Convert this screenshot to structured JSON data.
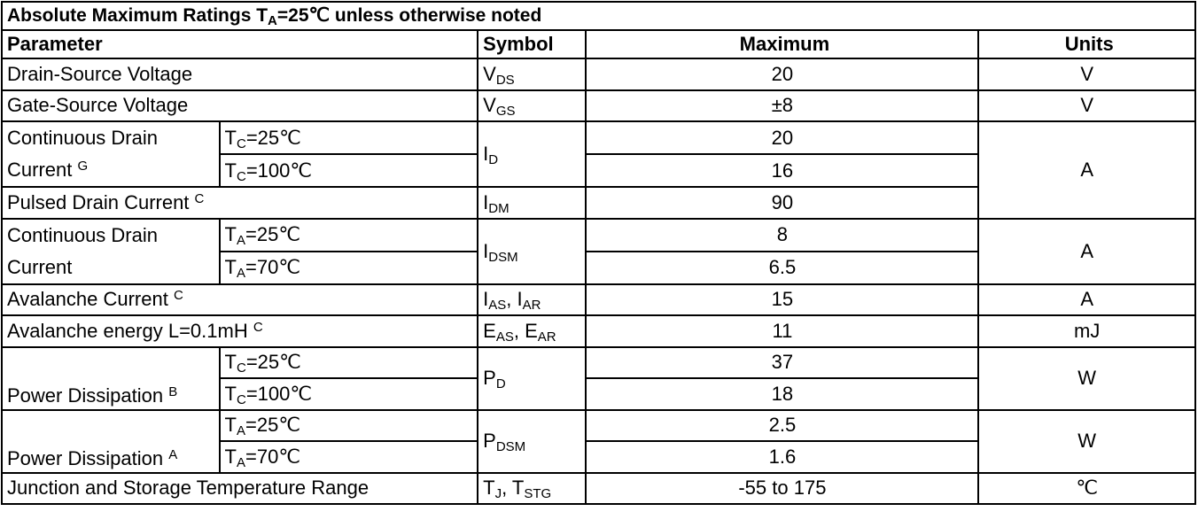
{
  "title": [
    "Absolute Maximum Ratings  T",
    {
      "sub": "A"
    },
    "=25℃ unless otherwise noted"
  ],
  "header": {
    "parameter": "Parameter",
    "symbol": "Symbol",
    "maximum": "Maximum",
    "units": "Units"
  },
  "groups": [
    {
      "units": "V",
      "rows": [
        {
          "parameter": [
            "Drain-Source Voltage"
          ],
          "symbol": [
            "V",
            {
              "sub": "DS"
            }
          ],
          "maximum": [
            20
          ]
        }
      ]
    },
    {
      "units": "V",
      "rows": [
        {
          "parameter": [
            "Gate-Source Voltage"
          ],
          "symbol": [
            "V",
            {
              "sub": "GS"
            }
          ],
          "maximum": [
            "±8"
          ]
        }
      ]
    },
    {
      "units": "A",
      "rows": [
        {
          "parameter": [
            "Continuous Drain Current ",
            {
              "sup": "G"
            }
          ],
          "conditions": [
            [
              "T",
              {
                "sub": "C"
              },
              "=25℃"
            ],
            [
              "T",
              {
                "sub": "C"
              },
              "=100℃"
            ]
          ],
          "symbol": [
            "I",
            {
              "sub": "D"
            }
          ],
          "maximum": [
            20,
            16
          ]
        },
        {
          "parameter": [
            "Pulsed Drain Current ",
            {
              "sup": "C"
            }
          ],
          "symbol": [
            "I",
            {
              "sub": "DM"
            }
          ],
          "maximum": [
            90
          ]
        }
      ]
    },
    {
      "units": "A",
      "rows": [
        {
          "parameter": [
            "Continuous Drain Current"
          ],
          "conditions": [
            [
              "T",
              {
                "sub": "A"
              },
              "=25℃"
            ],
            [
              "T",
              {
                "sub": "A"
              },
              "=70℃"
            ]
          ],
          "symbol": [
            "I",
            {
              "sub": "DSM"
            }
          ],
          "maximum": [
            8,
            6.5
          ]
        }
      ]
    },
    {
      "units": "A",
      "rows": [
        {
          "parameter": [
            "Avalanche Current ",
            {
              "sup": "C"
            }
          ],
          "symbol": [
            "I",
            {
              "sub": "AS"
            },
            ", I",
            {
              "sub": "AR"
            }
          ],
          "maximum": [
            15
          ]
        }
      ]
    },
    {
      "units": "mJ",
      "rows": [
        {
          "parameter": [
            "Avalanche energy L=0.1mH ",
            {
              "sup": "C"
            }
          ],
          "symbol": [
            "E",
            {
              "sub": "AS"
            },
            ", E",
            {
              "sub": "AR"
            }
          ],
          "maximum": [
            11
          ]
        }
      ]
    },
    {
      "units": "W",
      "rows": [
        {
          "parameter": [
            "Power Dissipation ",
            {
              "sup": "B"
            }
          ],
          "conditions": [
            [
              "T",
              {
                "sub": "C"
              },
              "=25℃"
            ],
            [
              "T",
              {
                "sub": "C"
              },
              "=100℃"
            ]
          ],
          "symbol": [
            "P",
            {
              "sub": "D"
            }
          ],
          "maximum": [
            37,
            18
          ]
        }
      ]
    },
    {
      "units": "W",
      "rows": [
        {
          "parameter": [
            "Power Dissipation ",
            {
              "sup": "A"
            }
          ],
          "conditions": [
            [
              "T",
              {
                "sub": "A"
              },
              "=25℃"
            ],
            [
              "T",
              {
                "sub": "A"
              },
              "=70℃"
            ]
          ],
          "symbol": [
            "P",
            {
              "sub": "DSM"
            }
          ],
          "maximum": [
            2.5,
            1.6
          ]
        }
      ]
    },
    {
      "units": "℃",
      "rows": [
        {
          "parameter": [
            "Junction and Storage Temperature Range"
          ],
          "symbol": [
            "T",
            {
              "sub": "J"
            },
            ", T",
            {
              "sub": "STG"
            }
          ],
          "maximum": [
            "-55 to 175"
          ]
        }
      ]
    }
  ]
}
